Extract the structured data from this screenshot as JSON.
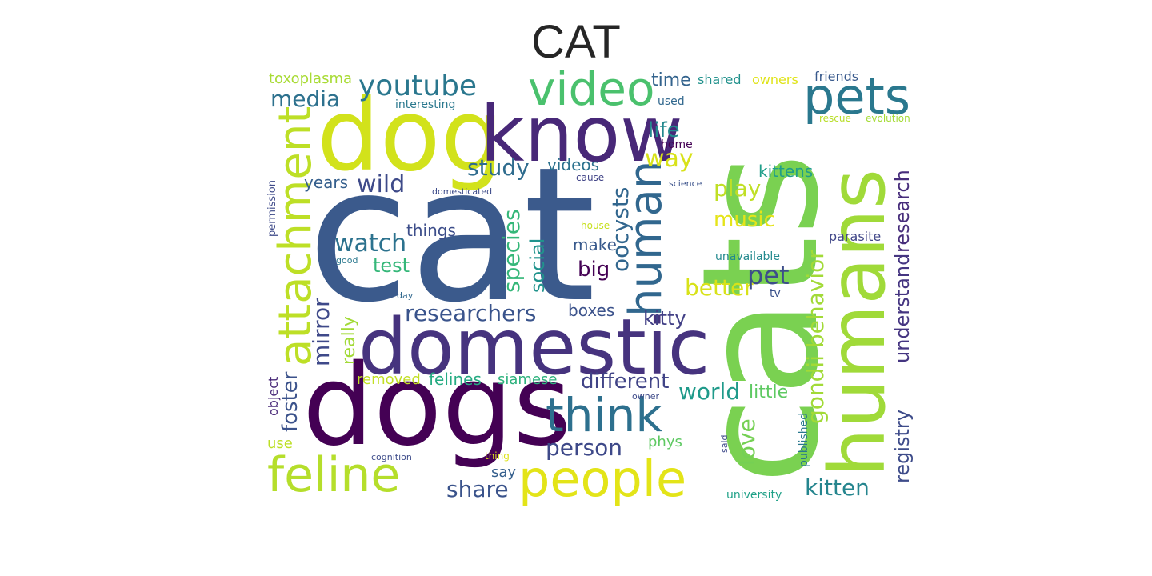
{
  "title": "CAT",
  "words": {
    "cat": {
      "text": "cat",
      "color": "#3b5a8c"
    },
    "cats": {
      "text": "cats",
      "color": "#7ad151"
    },
    "dogs": {
      "text": "dogs",
      "color": "#440154"
    },
    "dog": {
      "text": "dog",
      "color": "#d2e21b"
    },
    "know": {
      "text": "know",
      "color": "#482878"
    },
    "humans": {
      "text": "humans",
      "color": "#a0da39"
    },
    "domestic": {
      "text": "domestic",
      "color": "#46337e"
    },
    "video": {
      "text": "video",
      "color": "#4ac16d"
    },
    "pets": {
      "text": "pets",
      "color": "#2a788e"
    },
    "attachment": {
      "text": "attachment",
      "color": "#bddf26"
    },
    "feline": {
      "text": "feline",
      "color": "#b5de2b"
    },
    "people": {
      "text": "people",
      "color": "#e3e418"
    },
    "think": {
      "text": "think",
      "color": "#2d708e"
    },
    "human": {
      "text": "human",
      "color": "#31678e"
    },
    "youtube": {
      "text": "youtube",
      "color": "#2a778e"
    },
    "media": {
      "text": "media",
      "color": "#2d718e"
    },
    "gondii_behavior": {
      "text": "gondii behavior",
      "color": "#a2da37"
    },
    "research": {
      "text": "research",
      "color": "#472d7b"
    },
    "understand": {
      "text": "understand",
      "color": "#453581"
    },
    "registry": {
      "text": "registry",
      "color": "#3e4c8a"
    },
    "kitten": {
      "text": "kitten",
      "color": "#25858e"
    },
    "wild": {
      "text": "wild",
      "color": "#3e4a89"
    },
    "study": {
      "text": "study",
      "color": "#2f6c8e"
    },
    "species": {
      "text": "species",
      "color": "#35b779"
    },
    "oocysts": {
      "text": "oocysts",
      "color": "#31668e"
    },
    "social": {
      "text": "social",
      "color": "#20938c"
    },
    "watch": {
      "text": "watch",
      "color": "#2c728e"
    },
    "test": {
      "text": "test",
      "color": "#35b779"
    },
    "researchers": {
      "text": "researchers",
      "color": "#3a548c"
    },
    "different": {
      "text": "different",
      "color": "#414487"
    },
    "person": {
      "text": "person",
      "color": "#3e4989"
    },
    "share": {
      "text": "share",
      "color": "#3a538b"
    },
    "world": {
      "text": "world",
      "color": "#1f9a8a"
    },
    "little": {
      "text": "little",
      "color": "#5ec962"
    },
    "love": {
      "text": "love",
      "color": "#75d054"
    },
    "play": {
      "text": "play",
      "color": "#c0df25"
    },
    "music": {
      "text": "music",
      "color": "#e5e419"
    },
    "better": {
      "text": "better",
      "color": "#d8e219"
    },
    "pet": {
      "text": "pet",
      "color": "#3d4e8a"
    },
    "kitty": {
      "text": "kitty",
      "color": "#424086"
    },
    "big": {
      "text": "big",
      "color": "#440154"
    },
    "make": {
      "text": "make",
      "color": "#38598c"
    },
    "mirror": {
      "text": "mirror",
      "color": "#3e4989"
    },
    "foster": {
      "text": "foster",
      "color": "#3b528b"
    },
    "really": {
      "text": "really",
      "color": "#a2da37"
    },
    "removed": {
      "text": "removed",
      "color": "#c2df23"
    },
    "felines": {
      "text": "felines",
      "color": "#25ab82"
    },
    "siamese": {
      "text": "siamese",
      "color": "#2db27d"
    },
    "boxes": {
      "text": "boxes",
      "color": "#3b528b"
    },
    "things": {
      "text": "things",
      "color": "#3d4e8a"
    },
    "years": {
      "text": "years",
      "color": "#355f8d"
    },
    "videos": {
      "text": "videos",
      "color": "#2c728e"
    },
    "way": {
      "text": "way",
      "color": "#d8e219"
    },
    "life": {
      "text": "life",
      "color": "#23898e"
    },
    "home": {
      "text": "home",
      "color": "#440154"
    },
    "time": {
      "text": "time",
      "color": "#33638d"
    },
    "shared": {
      "text": "shared",
      "color": "#21918c"
    },
    "owners": {
      "text": "owners",
      "color": "#dfe318"
    },
    "friends": {
      "text": "friends",
      "color": "#38598c"
    },
    "used": {
      "text": "used",
      "color": "#31688e"
    },
    "rescue": {
      "text": "rescue",
      "color": "#b8de29"
    },
    "evolution": {
      "text": "evolution",
      "color": "#a5db36"
    },
    "kittens": {
      "text": "kittens",
      "color": "#1f9e89"
    },
    "toxoplasma": {
      "text": "toxoplasma",
      "color": "#a8db34"
    },
    "interesting": {
      "text": "interesting",
      "color": "#2a788e"
    },
    "domesticated": {
      "text": "domesticated",
      "color": "#3e4c8a"
    },
    "cause": {
      "text": "cause",
      "color": "#414487"
    },
    "science": {
      "text": "science",
      "color": "#3b528b"
    },
    "house": {
      "text": "house",
      "color": "#c8e020"
    },
    "parasite": {
      "text": "parasite",
      "color": "#404688"
    },
    "unavailable": {
      "text": "unavailable",
      "color": "#23898e"
    },
    "good": {
      "text": "good",
      "color": "#2a788e"
    },
    "day": {
      "text": "day",
      "color": "#31688e"
    },
    "tv": {
      "text": "tv",
      "color": "#3b528b"
    },
    "permission": {
      "text": "permission",
      "color": "#3e4a89"
    },
    "object": {
      "text": "object",
      "color": "#482878"
    },
    "use": {
      "text": "use",
      "color": "#bddf26"
    },
    "cognition": {
      "text": "cognition",
      "color": "#3e4c8a"
    },
    "thing": {
      "text": "thing",
      "color": "#dde318"
    },
    "say": {
      "text": "say",
      "color": "#355f8d"
    },
    "phys": {
      "text": "phys",
      "color": "#5ec962"
    },
    "owner": {
      "text": "owner",
      "color": "#3e4a89"
    },
    "said": {
      "text": "said",
      "color": "#3e4989"
    },
    "published": {
      "text": "published",
      "color": "#2a788e"
    },
    "university": {
      "text": "university",
      "color": "#1fa187"
    }
  }
}
